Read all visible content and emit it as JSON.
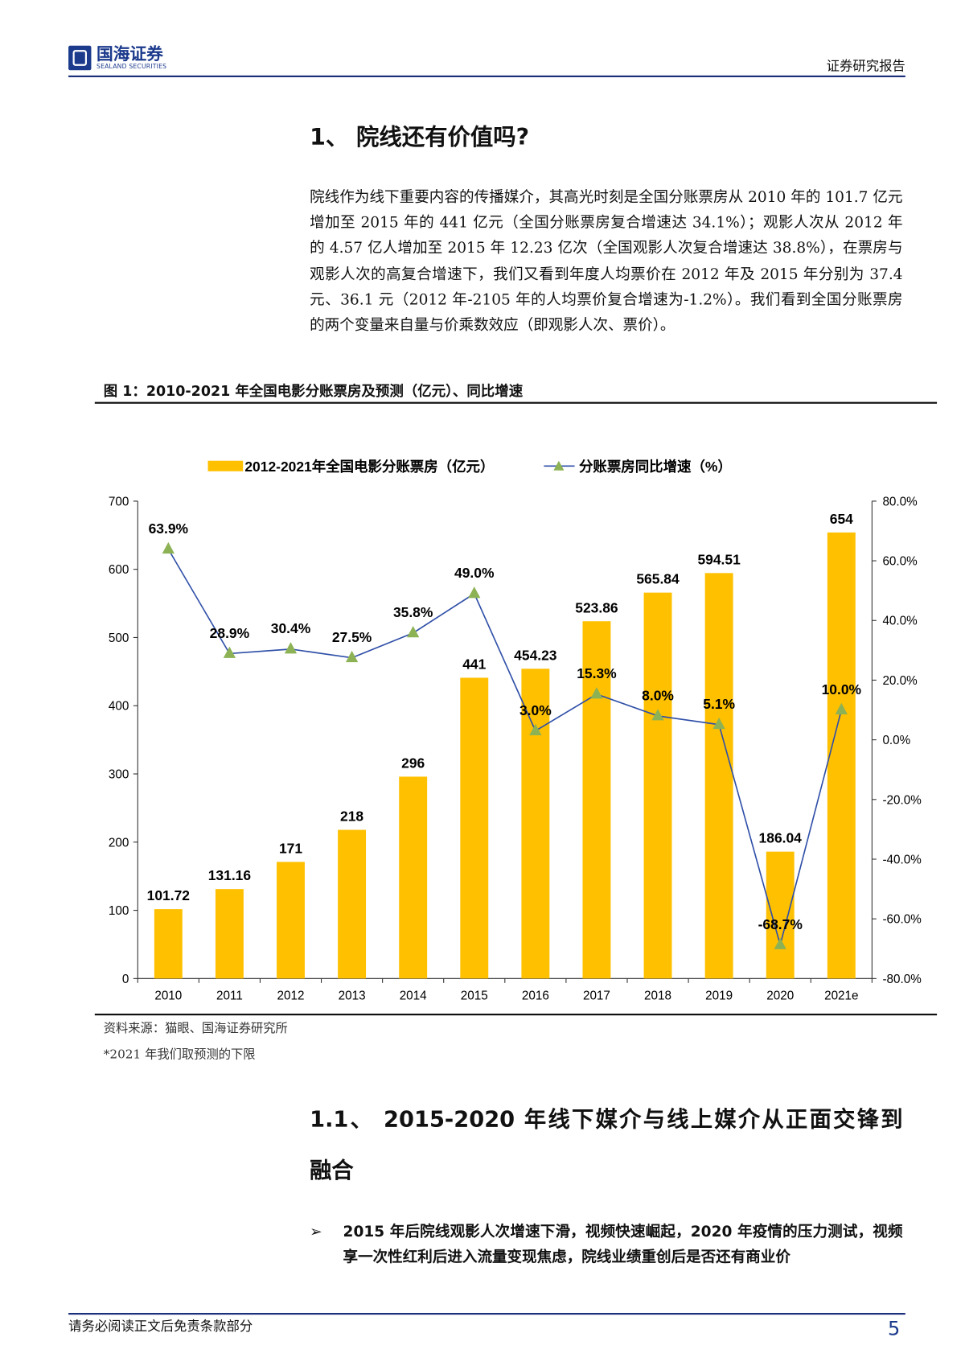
{
  "header": {
    "logo_cn": "国海证券",
    "logo_en": "SEALAND SECURITIES",
    "report_type": "证券研究报告"
  },
  "section1": {
    "title": "1、 院线还有价值吗?",
    "paragraph": "院线作为线下重要内容的传播媒介，其高光时刻是全国分账票房从 2010 年的 101.7 亿元增加至 2015 年的 441 亿元（全国分账票房复合增速达 34.1%）；观影人次从 2012 年的 4.57 亿人增加至 2015 年 12.23 亿次（全国观影人次复合增速达 38.8%），在票房与观影人次的高复合增速下，我们又看到年度人均票价在 2012 年及 2015 年分别为 37.4 元、36.1 元（2012 年-2105 年的人均票价复合增速为-1.2%）。我们看到全国分账票房的两个变量来自量与价乘数效应（即观影人次、票价）。"
  },
  "figure": {
    "caption": "图 1：2010-2021 年全国电影分账票房及预测（亿元）、同比增速",
    "source": "资料来源：猫眼、国海证券研究所",
    "note": "*2021 年我们取预测的下限"
  },
  "chart_data": {
    "type": "bar+line",
    "categories": [
      "2010",
      "2011",
      "2012",
      "2013",
      "2014",
      "2015",
      "2016",
      "2017",
      "2018",
      "2019",
      "2020",
      "2021e"
    ],
    "series": [
      {
        "name": "2012-2021年全国电影分账票房（亿元）",
        "type": "bar",
        "axis": "left",
        "color": "#FFC000",
        "values": [
          101.72,
          131.16,
          171,
          218,
          296,
          441,
          454.23,
          523.86,
          565.84,
          594.51,
          186.04,
          654
        ],
        "labels": [
          "101.72",
          "131.16",
          "171",
          "218",
          "296",
          "441",
          "454.23",
          "523.86",
          "565.84",
          "594.51",
          "186.04",
          "654"
        ]
      },
      {
        "name": "分账票房同比增速（%）",
        "type": "line",
        "axis": "right",
        "color": "#2F4FA8",
        "marker_color": "#8DB255",
        "marker": "triangle",
        "values": [
          63.9,
          28.9,
          30.4,
          27.5,
          35.8,
          49.0,
          3.0,
          15.3,
          8.0,
          5.1,
          -68.7,
          10.0
        ],
        "labels": [
          "63.9%",
          "28.9%",
          "30.4%",
          "27.5%",
          "35.8%",
          "49.0%",
          "3.0%",
          "15.3%",
          "8.0%",
          "5.1%",
          "-68.7%",
          "10.0%"
        ]
      }
    ],
    "y_left": {
      "range": [
        0,
        700
      ],
      "ticks": [
        "0",
        "100",
        "200",
        "300",
        "400",
        "500",
        "600",
        "700"
      ]
    },
    "y_right": {
      "range": [
        -80,
        80
      ],
      "ticks": [
        "-80.0%",
        "-60.0%",
        "-40.0%",
        "-20.0%",
        "0.0%",
        "20.0%",
        "40.0%",
        "60.0%",
        "80.0%"
      ]
    },
    "grid": false,
    "legend_position": "top"
  },
  "section2": {
    "title_line1": "1.1、 2015-2020 年线下媒介与线上媒介从正面交锋到",
    "title_line2": "融合",
    "bullet": "2015 年后院线观影人次增速下滑，视频快速崛起，2020 年疫情的压力测试，视频享一次性红利后进入流量变现焦虑，院线业绩重创后是否还有商业价"
  },
  "footer": {
    "disclaimer": "请务必阅读正文后免责条款部分",
    "page": "5"
  }
}
